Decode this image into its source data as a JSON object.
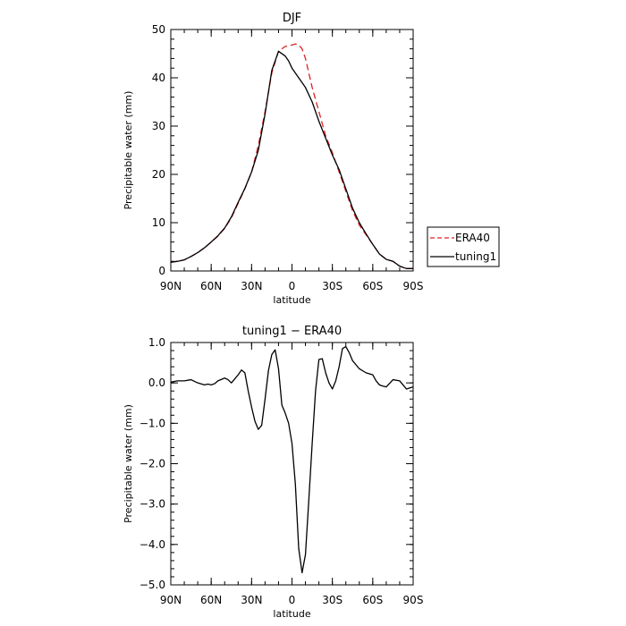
{
  "chart_data": [
    {
      "type": "line",
      "title": "DJF",
      "xlabel": "latitude",
      "ylabel": "Precipitable water (mm)",
      "xlim": [
        90,
        -90
      ],
      "ylim": [
        0,
        50
      ],
      "xticks": [
        {
          "value": 90,
          "label": "90N"
        },
        {
          "value": 60,
          "label": "60N"
        },
        {
          "value": 30,
          "label": "30N"
        },
        {
          "value": 0,
          "label": "0"
        },
        {
          "value": -30,
          "label": "30S"
        },
        {
          "value": -60,
          "label": "60S"
        },
        {
          "value": -90,
          "label": "90S"
        }
      ],
      "yticks": [
        {
          "value": 0,
          "label": "0"
        },
        {
          "value": 10,
          "label": "10"
        },
        {
          "value": 20,
          "label": "20"
        },
        {
          "value": 30,
          "label": "30"
        },
        {
          "value": 40,
          "label": "40"
        },
        {
          "value": 50,
          "label": "50"
        }
      ],
      "legend_position": "right",
      "series": [
        {
          "name": "ERA40",
          "color": "#dd2222",
          "dash": "dashed",
          "x": [
            90,
            85,
            80,
            75,
            70,
            65,
            60,
            55,
            50,
            45,
            40,
            35,
            30,
            25,
            20,
            15,
            10,
            5,
            2.5,
            0,
            -2.5,
            -5,
            -7.5,
            -10,
            -15,
            -20,
            -25,
            -30,
            -35,
            -40,
            -45,
            -50,
            -55,
            -60,
            -65,
            -70,
            -75,
            -80,
            -85,
            -90
          ],
          "y": [
            1.8,
            2.0,
            2.3,
            3.0,
            3.8,
            4.8,
            6.0,
            7.2,
            8.8,
            11.0,
            14.0,
            17.0,
            20.5,
            26.0,
            33.0,
            41.0,
            45.5,
            46.5,
            46.6,
            46.8,
            47.0,
            46.8,
            46.0,
            44.0,
            38.0,
            33.0,
            28.0,
            24.5,
            20.5,
            16.5,
            12.5,
            9.5,
            7.5,
            5.5,
            3.5,
            2.4,
            2.0,
            1.0,
            0.5,
            0.5
          ]
        },
        {
          "name": "tuning1",
          "color": "#000000",
          "dash": "solid",
          "x": [
            90,
            85,
            80,
            75,
            70,
            65,
            60,
            55,
            50,
            45,
            40,
            35,
            30,
            25,
            20,
            15,
            10,
            5,
            2.5,
            0,
            -2.5,
            -5,
            -7.5,
            -10,
            -15,
            -20,
            -25,
            -30,
            -35,
            -40,
            -45,
            -50,
            -55,
            -60,
            -65,
            -70,
            -75,
            -80,
            -85,
            -90
          ],
          "y": [
            1.8,
            2.0,
            2.3,
            3.0,
            3.8,
            4.8,
            6.0,
            7.3,
            8.9,
            11.2,
            14.2,
            17.1,
            20.5,
            25.0,
            32.5,
            41.5,
            45.5,
            44.5,
            43.5,
            42.0,
            41.0,
            40.0,
            39.0,
            38.0,
            35.0,
            31.0,
            27.5,
            24.0,
            21.0,
            17.0,
            13.0,
            10.0,
            7.7,
            5.5,
            3.5,
            2.4,
            2.0,
            1.0,
            0.5,
            0.5
          ]
        }
      ]
    },
    {
      "type": "line",
      "title": "tuning1 − ERA40",
      "xlabel": "latitude",
      "ylabel": "Precipitable water (mm)",
      "xlim": [
        90,
        -90
      ],
      "ylim": [
        -5.0,
        1.0
      ],
      "xticks": [
        {
          "value": 90,
          "label": "90N"
        },
        {
          "value": 60,
          "label": "60N"
        },
        {
          "value": 30,
          "label": "30N"
        },
        {
          "value": 0,
          "label": "0"
        },
        {
          "value": -30,
          "label": "30S"
        },
        {
          "value": -60,
          "label": "60S"
        },
        {
          "value": -90,
          "label": "90S"
        }
      ],
      "yticks": [
        {
          "value": 1.0,
          "label": "1.0"
        },
        {
          "value": 0.0,
          "label": "0.0"
        },
        {
          "value": -1.0,
          "label": "−1.0"
        },
        {
          "value": -2.0,
          "label": "−2.0"
        },
        {
          "value": -3.0,
          "label": "−3.0"
        },
        {
          "value": -4.0,
          "label": "−4.0"
        },
        {
          "value": -5.0,
          "label": "−5.0"
        }
      ],
      "series": [
        {
          "color": "#000000",
          "x": [
            90,
            85,
            80,
            75,
            70,
            65,
            62.5,
            60,
            57.5,
            55,
            50,
            47.5,
            45,
            42.5,
            40,
            37.5,
            35,
            32.5,
            30,
            27.5,
            25,
            22.5,
            20,
            17.5,
            15,
            12.5,
            10,
            7.5,
            5,
            2.5,
            0,
            -2.5,
            -5,
            -7.5,
            -10,
            -12.5,
            -15,
            -17.5,
            -20,
            -22.5,
            -25,
            -27.5,
            -30,
            -32.5,
            -35,
            -37.5,
            -40,
            -42.5,
            -45,
            -50,
            -55,
            -60,
            -62.5,
            -65,
            -67.5,
            -70,
            -75,
            -80,
            -85,
            -90
          ],
          "y": [
            0.02,
            0.05,
            0.05,
            0.08,
            0.0,
            -0.05,
            -0.03,
            -0.05,
            -0.02,
            0.05,
            0.12,
            0.08,
            0.0,
            0.1,
            0.2,
            0.32,
            0.25,
            -0.2,
            -0.6,
            -0.95,
            -1.15,
            -1.05,
            -0.4,
            0.3,
            0.7,
            0.82,
            0.35,
            -0.55,
            -0.75,
            -1.0,
            -1.5,
            -2.5,
            -4.1,
            -4.7,
            -4.25,
            -2.9,
            -1.5,
            -0.2,
            0.58,
            0.6,
            0.25,
            0.0,
            -0.15,
            0.05,
            0.4,
            0.85,
            0.9,
            0.75,
            0.55,
            0.35,
            0.25,
            0.2,
            0.05,
            -0.05,
            -0.08,
            -0.1,
            0.08,
            0.05,
            -0.15,
            -0.1
          ]
        }
      ]
    }
  ],
  "legend": [
    {
      "label": "ERA40"
    },
    {
      "label": "tuning1"
    }
  ]
}
